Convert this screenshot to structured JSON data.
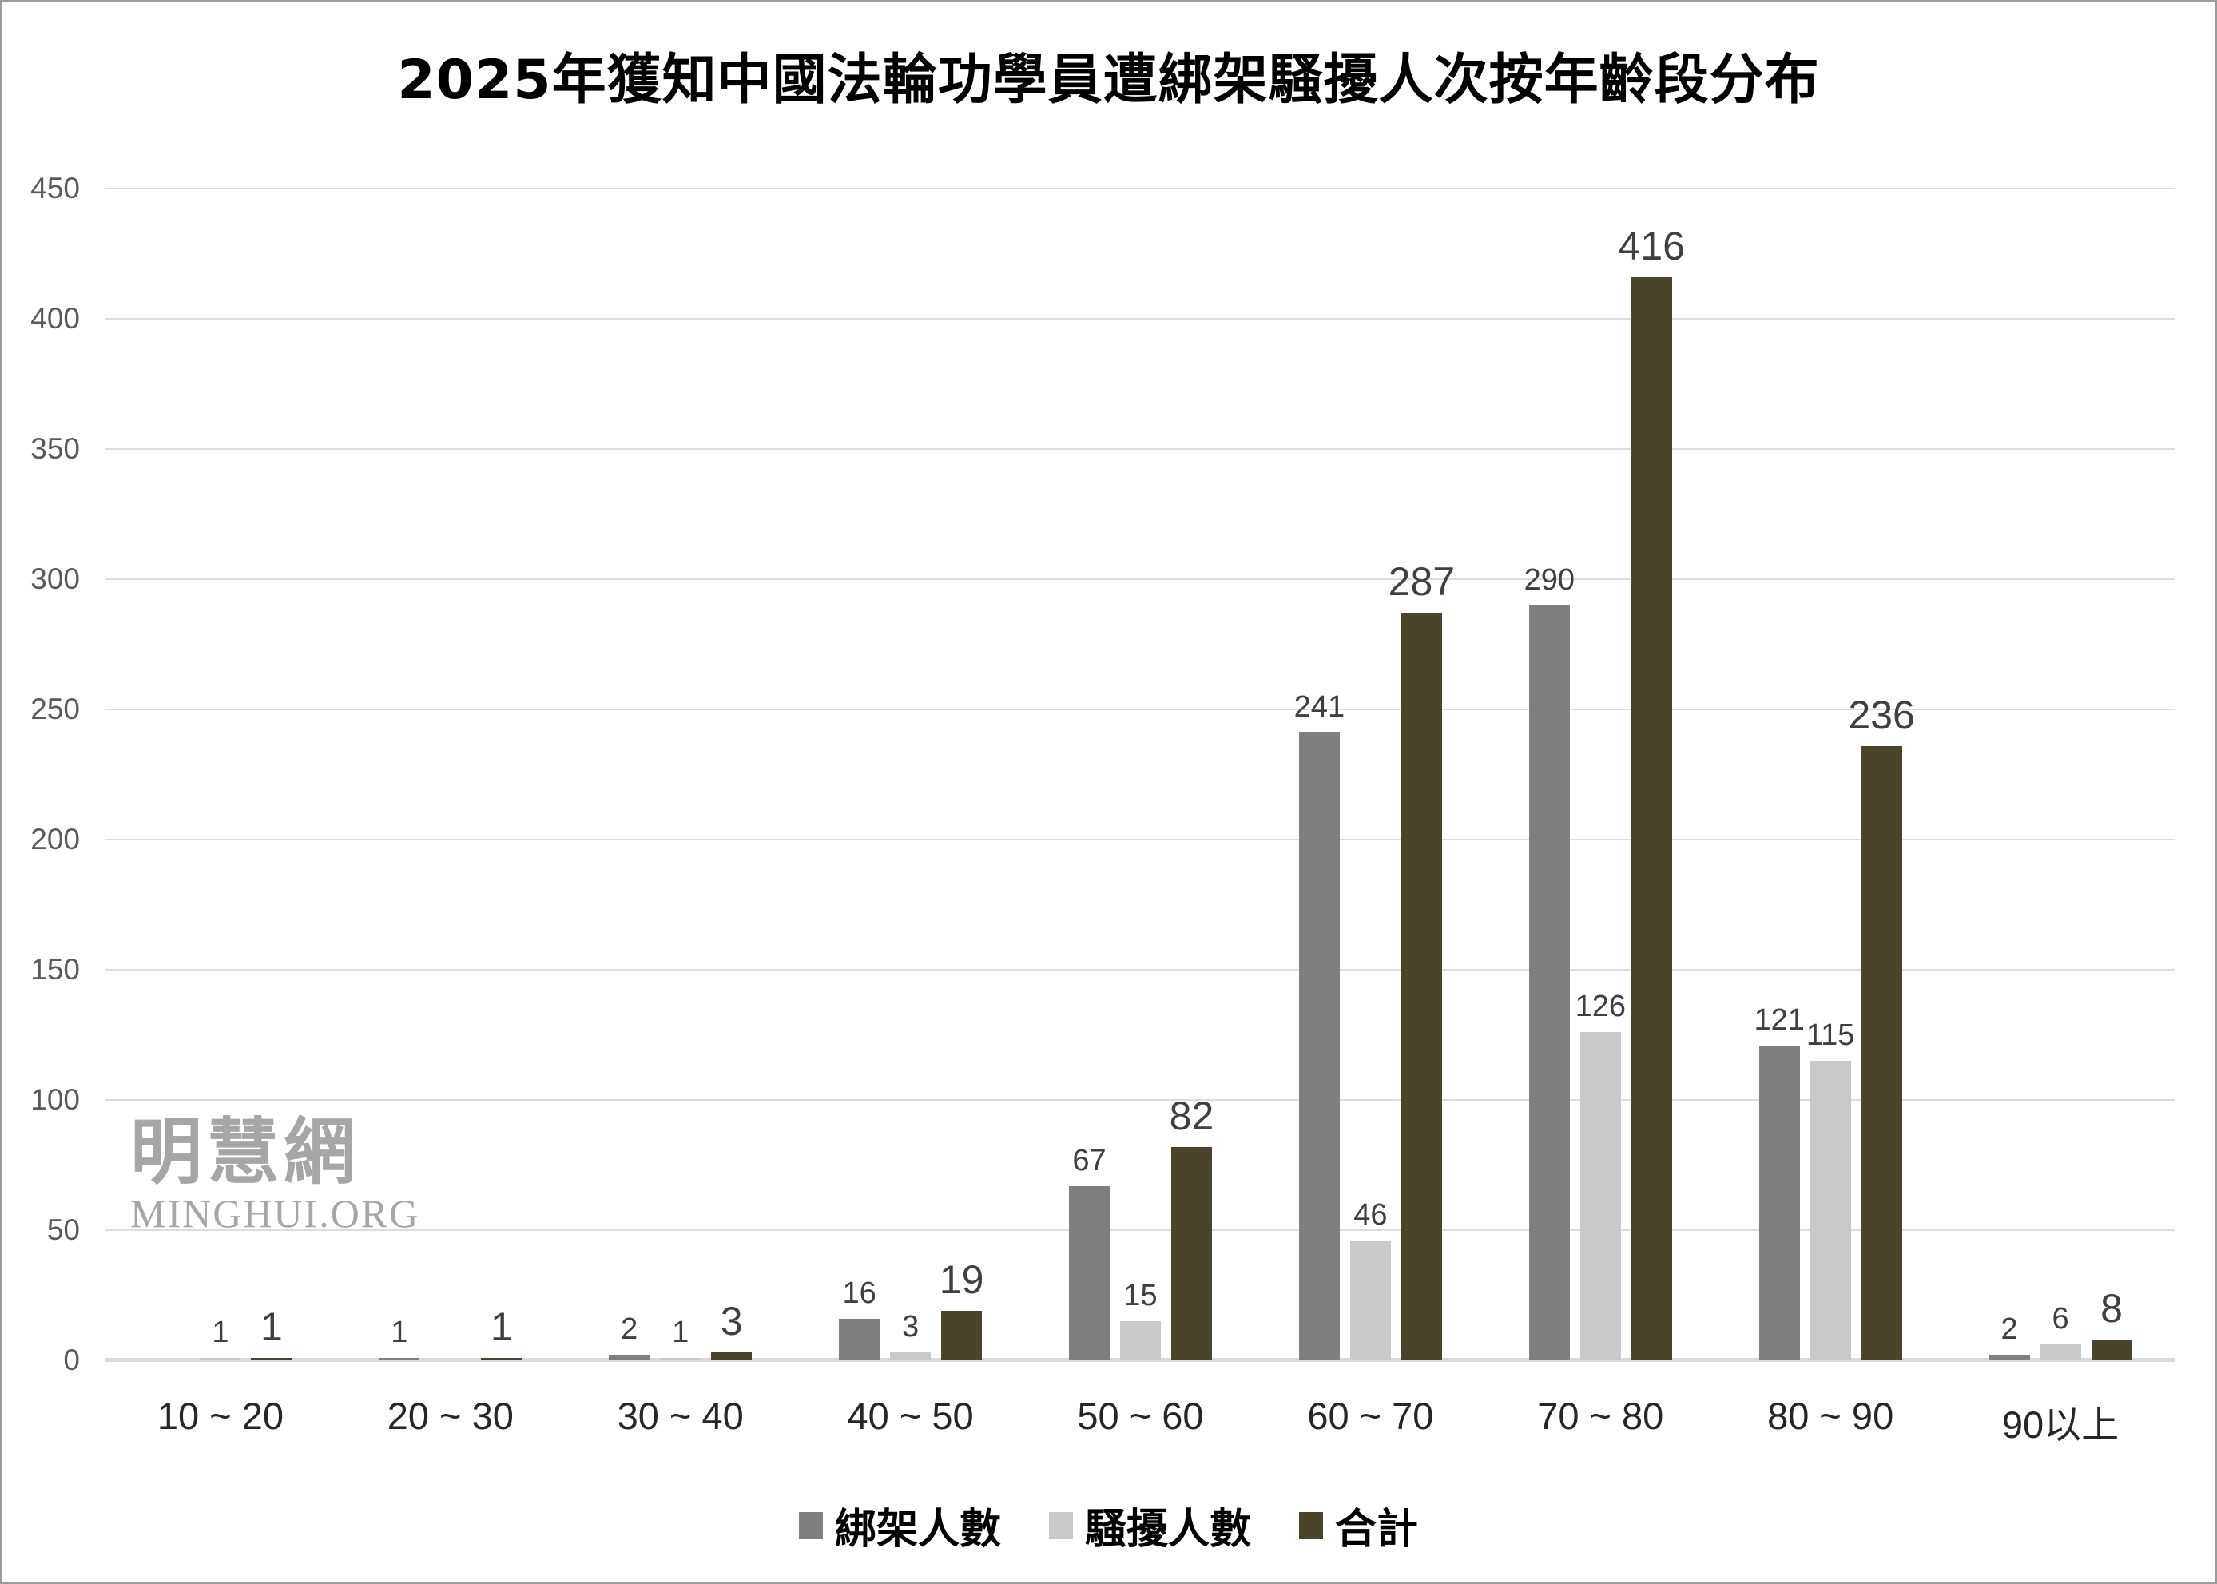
{
  "title": "2025年獲知中國法輪功學員遭綁架騷擾人次按年齡段分布",
  "watermark": {
    "cjk": "明慧網",
    "latin": "MINGHUI.ORG"
  },
  "chart_data": {
    "type": "bar",
    "title": "2025年獲知中國法輪功學員遭綁架騷擾人次按年齡段分布",
    "categories": [
      "10 ~ 20",
      "20 ~ 30",
      "30 ~ 40",
      "40 ~ 50",
      "50 ~ 60",
      "60 ~ 70",
      "70 ~ 80",
      "80 ~ 90",
      "90以上"
    ],
    "series": [
      {
        "name": "綁架人數",
        "color": "#7f7f7f",
        "values": [
          0,
          1,
          2,
          16,
          67,
          241,
          290,
          121,
          2
        ]
      },
      {
        "name": "騷擾人數",
        "color": "#c9c9c9",
        "values": [
          1,
          0,
          1,
          3,
          15,
          46,
          126,
          115,
          6
        ]
      },
      {
        "name": "合計",
        "color": "#4a442b",
        "values": [
          1,
          1,
          3,
          19,
          82,
          287,
          416,
          236,
          8
        ],
        "emphasized_labels": true
      }
    ],
    "yticks": [
      0,
      50,
      100,
      150,
      200,
      250,
      300,
      350,
      400,
      450
    ],
    "ylim": [
      0,
      450
    ],
    "xlabel": "",
    "ylabel": "",
    "grid": true,
    "legend_position": "bottom",
    "data_labels": "above bars; totals in larger font; zero values unlabeled"
  }
}
